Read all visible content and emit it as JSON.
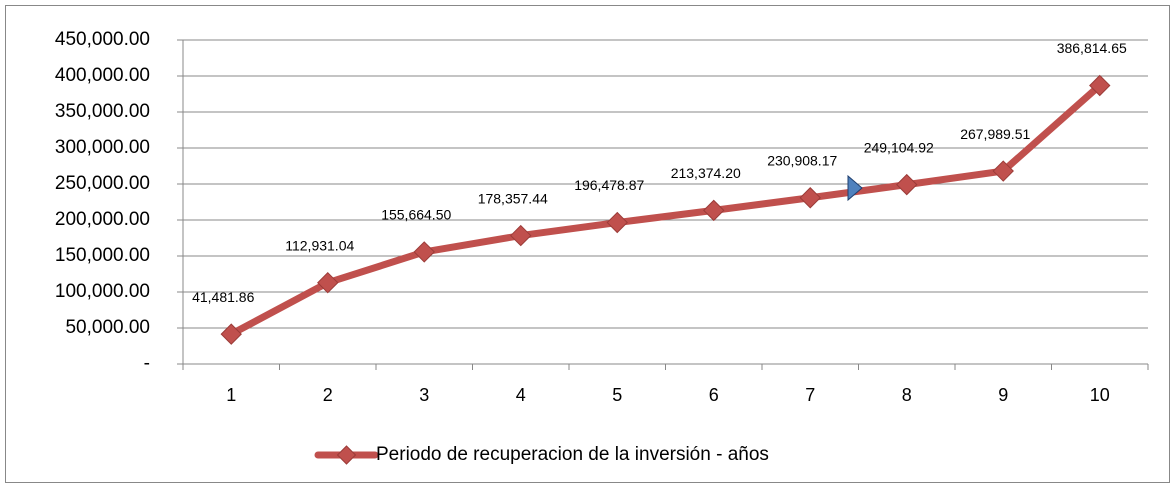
{
  "chart_data": {
    "type": "line",
    "categories": [
      "1",
      "2",
      "3",
      "4",
      "5",
      "6",
      "7",
      "8",
      "9",
      "10"
    ],
    "series": [
      {
        "name": "Periodo de recuperacion de la inversión - años",
        "color": "#c0504d",
        "values": [
          41481.86,
          112931.04,
          155664.5,
          178357.44,
          196478.87,
          213374.2,
          230908.17,
          249104.92,
          267989.51,
          386814.65
        ],
        "value_labels": [
          "41,481.86",
          "112,931.04",
          "155,664.50",
          "178,357.44",
          "196,478.87",
          "213,374.20",
          "230,908.17",
          "249,104.92",
          "267,989.51",
          "386,814.65"
        ]
      }
    ],
    "ylim": [
      0,
      450000
    ],
    "yticks": [
      {
        "value": 0,
        "label": "-"
      },
      {
        "value": 50000,
        "label": "50,000.00"
      },
      {
        "value": 100000,
        "label": "100,000.00"
      },
      {
        "value": 150000,
        "label": "150,000.00"
      },
      {
        "value": 200000,
        "label": "200,000.00"
      },
      {
        "value": 250000,
        "label": "250,000.00"
      },
      {
        "value": 300000,
        "label": "300,000.00"
      },
      {
        "value": 350000,
        "label": "350,000.00"
      },
      {
        "value": 400000,
        "label": "400,000.00"
      },
      {
        "value": 450000,
        "label": "450,000.00"
      }
    ],
    "grid": true,
    "legend": "bottom"
  }
}
